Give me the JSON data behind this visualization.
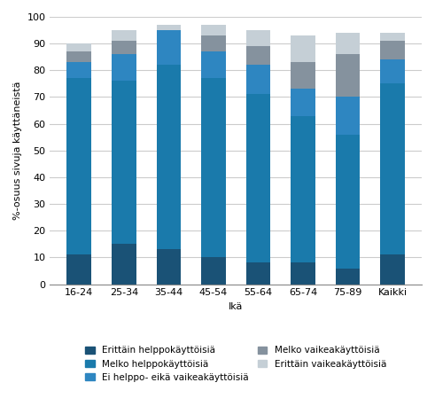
{
  "categories": [
    "16-24",
    "25-34",
    "35-44",
    "45-54",
    "55-64",
    "65-74",
    "75-89",
    "Kaikki"
  ],
  "series": [
    {
      "label": "Erittäin helppokäyttöisiä",
      "color": "#1a5276",
      "values": [
        11,
        15,
        13,
        10,
        8,
        8,
        6,
        11
      ]
    },
    {
      "label": "Melko helppokäyttöisiä",
      "color": "#1a7aab",
      "values": [
        66,
        61,
        69,
        67,
        63,
        55,
        50,
        64
      ]
    },
    {
      "label": "Ei helppo- eikä vaikeakäyttöisiä",
      "color": "#2e86c1",
      "values": [
        6,
        10,
        13,
        10,
        11,
        10,
        14,
        9
      ]
    },
    {
      "label": "Melko vaikeakäyttöisiä",
      "color": "#85929e",
      "values": [
        4,
        5,
        0,
        6,
        7,
        10,
        16,
        7
      ]
    },
    {
      "label": "Erittäin vaikeakäyttöisiä",
      "color": "#c5cfd6",
      "values": [
        3,
        4,
        2,
        4,
        6,
        10,
        8,
        3
      ]
    }
  ],
  "xlabel": "Ikä",
  "ylabel": "%-osuus sivuja käyttäneistä",
  "ylim": [
    0,
    100
  ],
  "yticks": [
    0,
    10,
    20,
    30,
    40,
    50,
    60,
    70,
    80,
    90,
    100
  ],
  "legend_fontsize": 7.5,
  "axis_fontsize": 8,
  "tick_fontsize": 8,
  "background_color": "#ffffff",
  "grid_color": "#cccccc"
}
